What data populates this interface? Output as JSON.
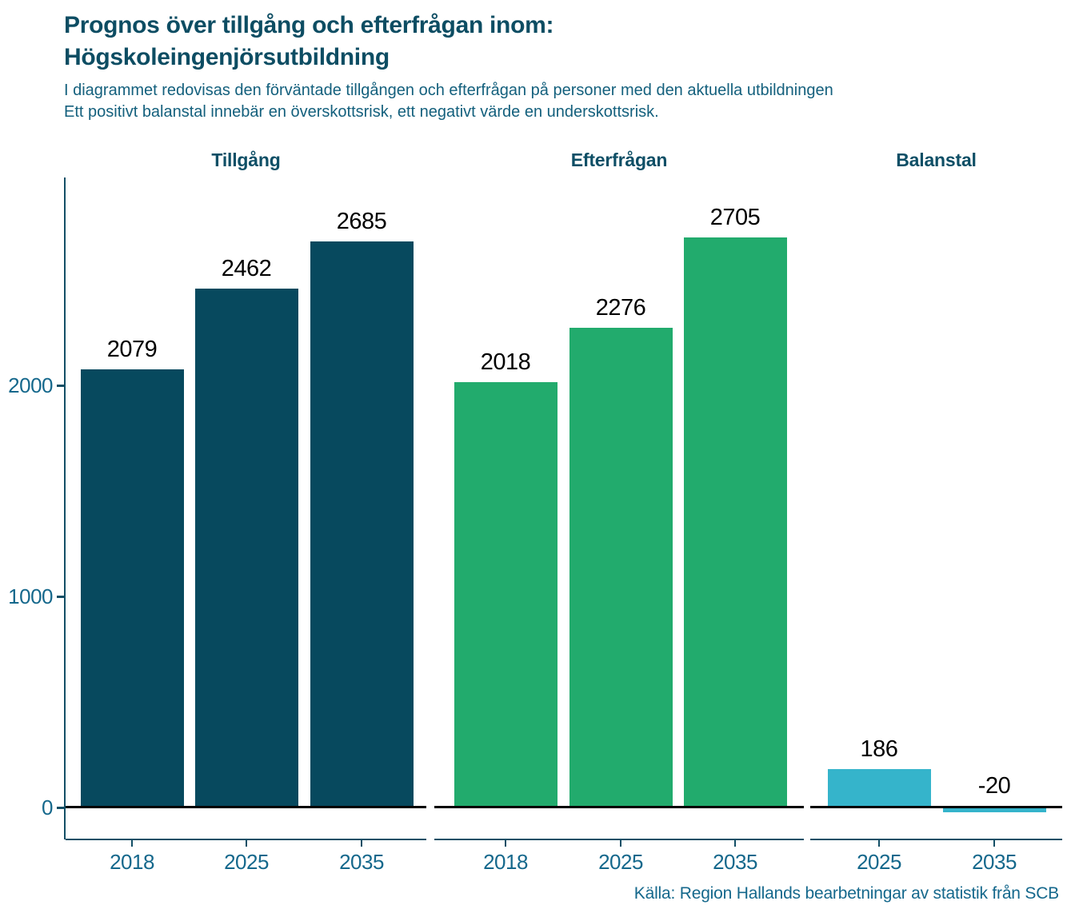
{
  "header": {
    "title_line1": "Prognos över tillgång och efterfrågan inom:",
    "title_line2": "Högskoleingenjörsutbildning",
    "subtitle_line1": "I diagrammet redovisas den förväntade tillgången och efterfrågan på personer med den aktuella utbildningen",
    "subtitle_line2": "Ett positivt balanstal innebär en överskottsrisk, ett negativt värde en underskottsrisk."
  },
  "footer": {
    "source": "Källa: Region Hallands bearbetningar av statistik från SCB"
  },
  "chart_data": {
    "type": "bar",
    "title": "Prognos över tillgång och efterfrågan inom: Högskoleingenjörsutbildning",
    "ylabel": "",
    "xlabel": "",
    "y_axis": {
      "ticks": [
        0,
        1000,
        2000
      ],
      "range": [
        -150,
        2990
      ],
      "gridlines": false
    },
    "zero_line_color": "#000000",
    "axis_color": "#134F66",
    "tick_label_color": "#15688C",
    "value_label_color": "#000000",
    "panels": [
      {
        "title": "Tillgång",
        "color": "#07495E",
        "categories": [
          "2018",
          "2025",
          "2035"
        ],
        "values": [
          2079,
          2462,
          2685
        ]
      },
      {
        "title": "Efterfrågan",
        "color": "#22AB6D",
        "categories": [
          "2018",
          "2025",
          "2035"
        ],
        "values": [
          2018,
          2276,
          2705
        ]
      },
      {
        "title": "Balanstal",
        "color": "#35B4CB",
        "categories": [
          "2025",
          "2035"
        ],
        "values": [
          186,
          -20
        ]
      }
    ]
  }
}
